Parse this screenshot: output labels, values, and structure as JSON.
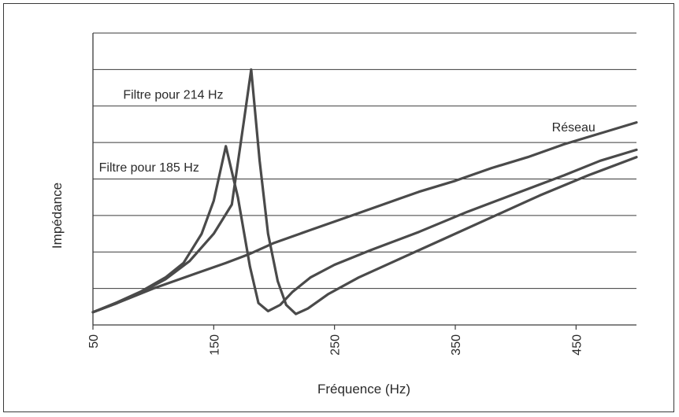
{
  "chart_data": {
    "type": "line",
    "title": "",
    "xlabel": "Fréquence (Hz)",
    "ylabel": "Impédance",
    "xlim": [
      50,
      500
    ],
    "ylim": [
      0,
      8
    ],
    "x_ticks": [
      50,
      150,
      250,
      350,
      450
    ],
    "y_gridlines": [
      1,
      2,
      3,
      4,
      5,
      6,
      7,
      8
    ],
    "y_tick_labels_shown": false,
    "grid": "horizontal",
    "colors": {
      "line": "#4a4a4a",
      "grid": "#3a3a3a",
      "frame": "#3a3a3a"
    },
    "annotations": [
      {
        "text": "Filtre pour 214 Hz",
        "x": 75,
        "y": 6.2,
        "anchor": "start"
      },
      {
        "text": "Filtre pour 185 Hz",
        "x": 55,
        "y": 4.2,
        "anchor": "start"
      },
      {
        "text": "Réseau",
        "x": 430,
        "y": 5.3,
        "anchor": "start"
      }
    ],
    "series": [
      {
        "name": "Réseau",
        "points": [
          [
            50,
            0.35
          ],
          [
            70,
            0.6
          ],
          [
            100,
            1.0
          ],
          [
            130,
            1.35
          ],
          [
            160,
            1.7
          ],
          [
            180,
            1.95
          ],
          [
            200,
            2.25
          ],
          [
            230,
            2.6
          ],
          [
            260,
            2.95
          ],
          [
            290,
            3.3
          ],
          [
            320,
            3.65
          ],
          [
            350,
            3.95
          ],
          [
            380,
            4.3
          ],
          [
            410,
            4.6
          ],
          [
            440,
            4.95
          ],
          [
            470,
            5.25
          ],
          [
            500,
            5.55
          ]
        ]
      },
      {
        "name": "Filtre pour 185 Hz",
        "points": [
          [
            50,
            0.35
          ],
          [
            70,
            0.62
          ],
          [
            90,
            0.92
          ],
          [
            110,
            1.3
          ],
          [
            125,
            1.7
          ],
          [
            140,
            2.5
          ],
          [
            150,
            3.4
          ],
          [
            160,
            4.9
          ],
          [
            170,
            3.5
          ],
          [
            180,
            1.6
          ],
          [
            187,
            0.6
          ],
          [
            195,
            0.38
          ],
          [
            205,
            0.55
          ],
          [
            215,
            0.9
          ],
          [
            230,
            1.3
          ],
          [
            250,
            1.65
          ],
          [
            280,
            2.05
          ],
          [
            320,
            2.55
          ],
          [
            360,
            3.1
          ],
          [
            400,
            3.6
          ],
          [
            440,
            4.1
          ],
          [
            470,
            4.5
          ],
          [
            500,
            4.8
          ]
        ]
      },
      {
        "name": "Filtre pour 214 Hz",
        "points": [
          [
            50,
            0.35
          ],
          [
            70,
            0.6
          ],
          [
            90,
            0.9
          ],
          [
            110,
            1.25
          ],
          [
            130,
            1.75
          ],
          [
            150,
            2.5
          ],
          [
            165,
            3.3
          ],
          [
            175,
            5.6
          ],
          [
            181,
            7.0
          ],
          [
            188,
            4.5
          ],
          [
            195,
            2.5
          ],
          [
            203,
            1.2
          ],
          [
            210,
            0.55
          ],
          [
            218,
            0.3
          ],
          [
            228,
            0.45
          ],
          [
            245,
            0.85
          ],
          [
            270,
            1.3
          ],
          [
            300,
            1.75
          ],
          [
            340,
            2.35
          ],
          [
            380,
            2.95
          ],
          [
            420,
            3.55
          ],
          [
            460,
            4.1
          ],
          [
            500,
            4.6
          ]
        ]
      }
    ]
  }
}
